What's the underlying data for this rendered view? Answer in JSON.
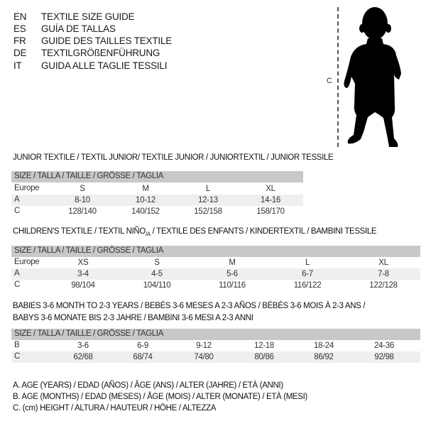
{
  "header": {
    "languages": [
      {
        "code": "EN",
        "title": "TEXTILE SIZE GUIDE"
      },
      {
        "code": "ES",
        "title": "GUÍA DE TALLAS"
      },
      {
        "code": "FR",
        "title": "GUIDE DES TAILLES TEXTILE"
      },
      {
        "code": "DE",
        "title": "TEXTILGRÖßENFÜHRUNG"
      },
      {
        "code": "IT",
        "title": "GUIDA ALLE TAGLIE TESSILI"
      }
    ]
  },
  "figure": {
    "icon": "baby-silhouette-icon",
    "measure_label": "C"
  },
  "size_header": "SIZE / TALLA / TAILLE / GRÖSSE / TAGLIA",
  "junior": {
    "title": "JUNIOR TEXTILE / TEXTIL JUNIOR/ TEXTILE JUNIOR / JUNIORTEXTIL / JUNIOR TESSILE",
    "rows": [
      {
        "label": "Europe",
        "values": [
          "S",
          "M",
          "L",
          "XL"
        ]
      },
      {
        "label": "A",
        "values": [
          "8-10",
          "10-12",
          "12-13",
          "14-16"
        ]
      },
      {
        "label": "C",
        "values": [
          "128/140",
          "140/152",
          "152/158",
          "158/170"
        ]
      }
    ]
  },
  "children": {
    "title_part1": "CHILDREN'S TEXTILE / TEXTIL NIÑO",
    "title_sub": "/A",
    "title_part2": " / TEXTILE DES ENFANTS / KINDERTEXTIL / BAMBINI TESSILE",
    "rows": [
      {
        "label": "Europe",
        "values": [
          "XS",
          "S",
          "M",
          "L",
          "XL"
        ]
      },
      {
        "label": "A",
        "values": [
          "3-4",
          "4-5",
          "5-6",
          "6-7",
          "7-8"
        ]
      },
      {
        "label": "C",
        "values": [
          "98/104",
          "104/110",
          "110/116",
          "116/122",
          "122/128"
        ]
      }
    ]
  },
  "babies": {
    "title_line1": "BABIES 3-6 MONTH TO 2-3 YEARS / BEBÉS 3-6 MESES A 2-3 AÑOS / BÉBÉS 3-6 MOIS À 2-3 ANS /",
    "title_line2": "BABYS 3-6 MONATE BIS 2-3 JAHRE / BAMBINI 3-6 MESI A 2-3 ANNI",
    "rows": [
      {
        "label": "B",
        "values": [
          "3-6",
          "6-9",
          "9-12",
          "12-18",
          "18-24",
          "24-36"
        ]
      },
      {
        "label": "C",
        "values": [
          "62/68",
          "68/74",
          "74/80",
          "80/86",
          "86/92",
          "92/98"
        ]
      }
    ]
  },
  "legend": [
    "A. AGE (YEARS) / EDAD (AÑOS) / ÂGE (ANS) / ALTER (JAHRE) / ETÀ (ANNI)",
    "B. AGE (MONTHS) / EDAD (MESES) / ÂGE (MOIS) / ALTER (MONATE) / ETÀ (MESI)",
    "C. (cm) HEIGHT / ALTURA / HAUTEUR / HÖHE / ALTEZZA"
  ],
  "colors": {
    "header_bg": "#c8c8c8",
    "row_shade": "#efefef"
  }
}
